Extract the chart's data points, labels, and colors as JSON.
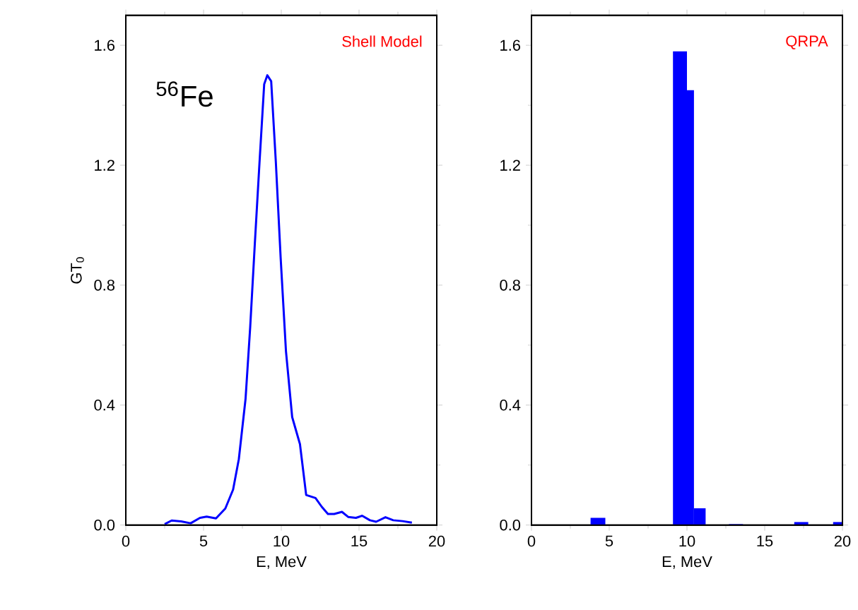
{
  "chart_data": [
    {
      "type": "line",
      "xlabel": "E, MeV",
      "ylabel": "GT$_{0}$",
      "annotations": [
        "Shell Model",
        "$^{56}$Fe"
      ],
      "color": "#0000ff",
      "x": [
        2.5,
        2.95,
        3.56,
        4.17,
        4.77,
        5.2,
        5.8,
        6.4,
        6.9,
        7.27,
        7.7,
        8.0,
        8.3,
        8.6,
        8.9,
        9.1,
        9.35,
        9.65,
        9.96,
        10.3,
        10.7,
        11.2,
        11.6,
        12.2,
        12.6,
        13.0,
        13.4,
        13.9,
        14.3,
        14.8,
        15.2,
        15.7,
        16.1,
        16.7,
        17.2,
        17.8,
        18.4
      ],
      "values": [
        0.003,
        0.015,
        0.012,
        0.006,
        0.024,
        0.028,
        0.022,
        0.055,
        0.118,
        0.22,
        0.42,
        0.66,
        0.94,
        1.21,
        1.47,
        1.5,
        1.48,
        1.21,
        0.89,
        0.58,
        0.36,
        0.27,
        0.1,
        0.09,
        0.061,
        0.037,
        0.037,
        0.044,
        0.027,
        0.024,
        0.031,
        0.016,
        0.011,
        0.026,
        0.016,
        0.013,
        0.008
      ],
      "xlim": [
        0,
        20
      ],
      "ylim": [
        0,
        1.7
      ],
      "xticks": [
        0,
        5,
        10,
        15,
        20
      ],
      "yticks": [
        {
          "value": 0,
          "label": "0.0"
        },
        {
          "value": 0.4,
          "label": "0.4"
        },
        {
          "value": 0.8,
          "label": "0.8"
        },
        {
          "value": 1.2,
          "label": "1.2"
        },
        {
          "value": 1.6,
          "label": "1.6"
        }
      ]
    },
    {
      "type": "histogram",
      "xlabel": "E, MeV",
      "annotations": [
        "QRPA"
      ],
      "color": "#0000ff",
      "bins": [
        3.8,
        4.75,
        9.1,
        10.0,
        10.45,
        11.2,
        12.7,
        13.6,
        16.9,
        17.8,
        19.4,
        20
      ],
      "values": [
        0.024,
        0,
        1.58,
        1.45,
        0.056,
        0,
        0.003,
        0,
        0.01,
        0,
        0.01
      ],
      "xlim": [
        0,
        20
      ],
      "ylim": [
        0,
        1.7
      ],
      "xticks": [
        0,
        5,
        10,
        15,
        20
      ],
      "yticks": [
        {
          "value": 0,
          "label": "0.0"
        },
        {
          "value": 0.4,
          "label": "0.4"
        },
        {
          "value": 0.8,
          "label": "0.8"
        },
        {
          "value": 1.2,
          "label": "1.2"
        },
        {
          "value": 1.6,
          "label": "1.6"
        }
      ]
    }
  ]
}
